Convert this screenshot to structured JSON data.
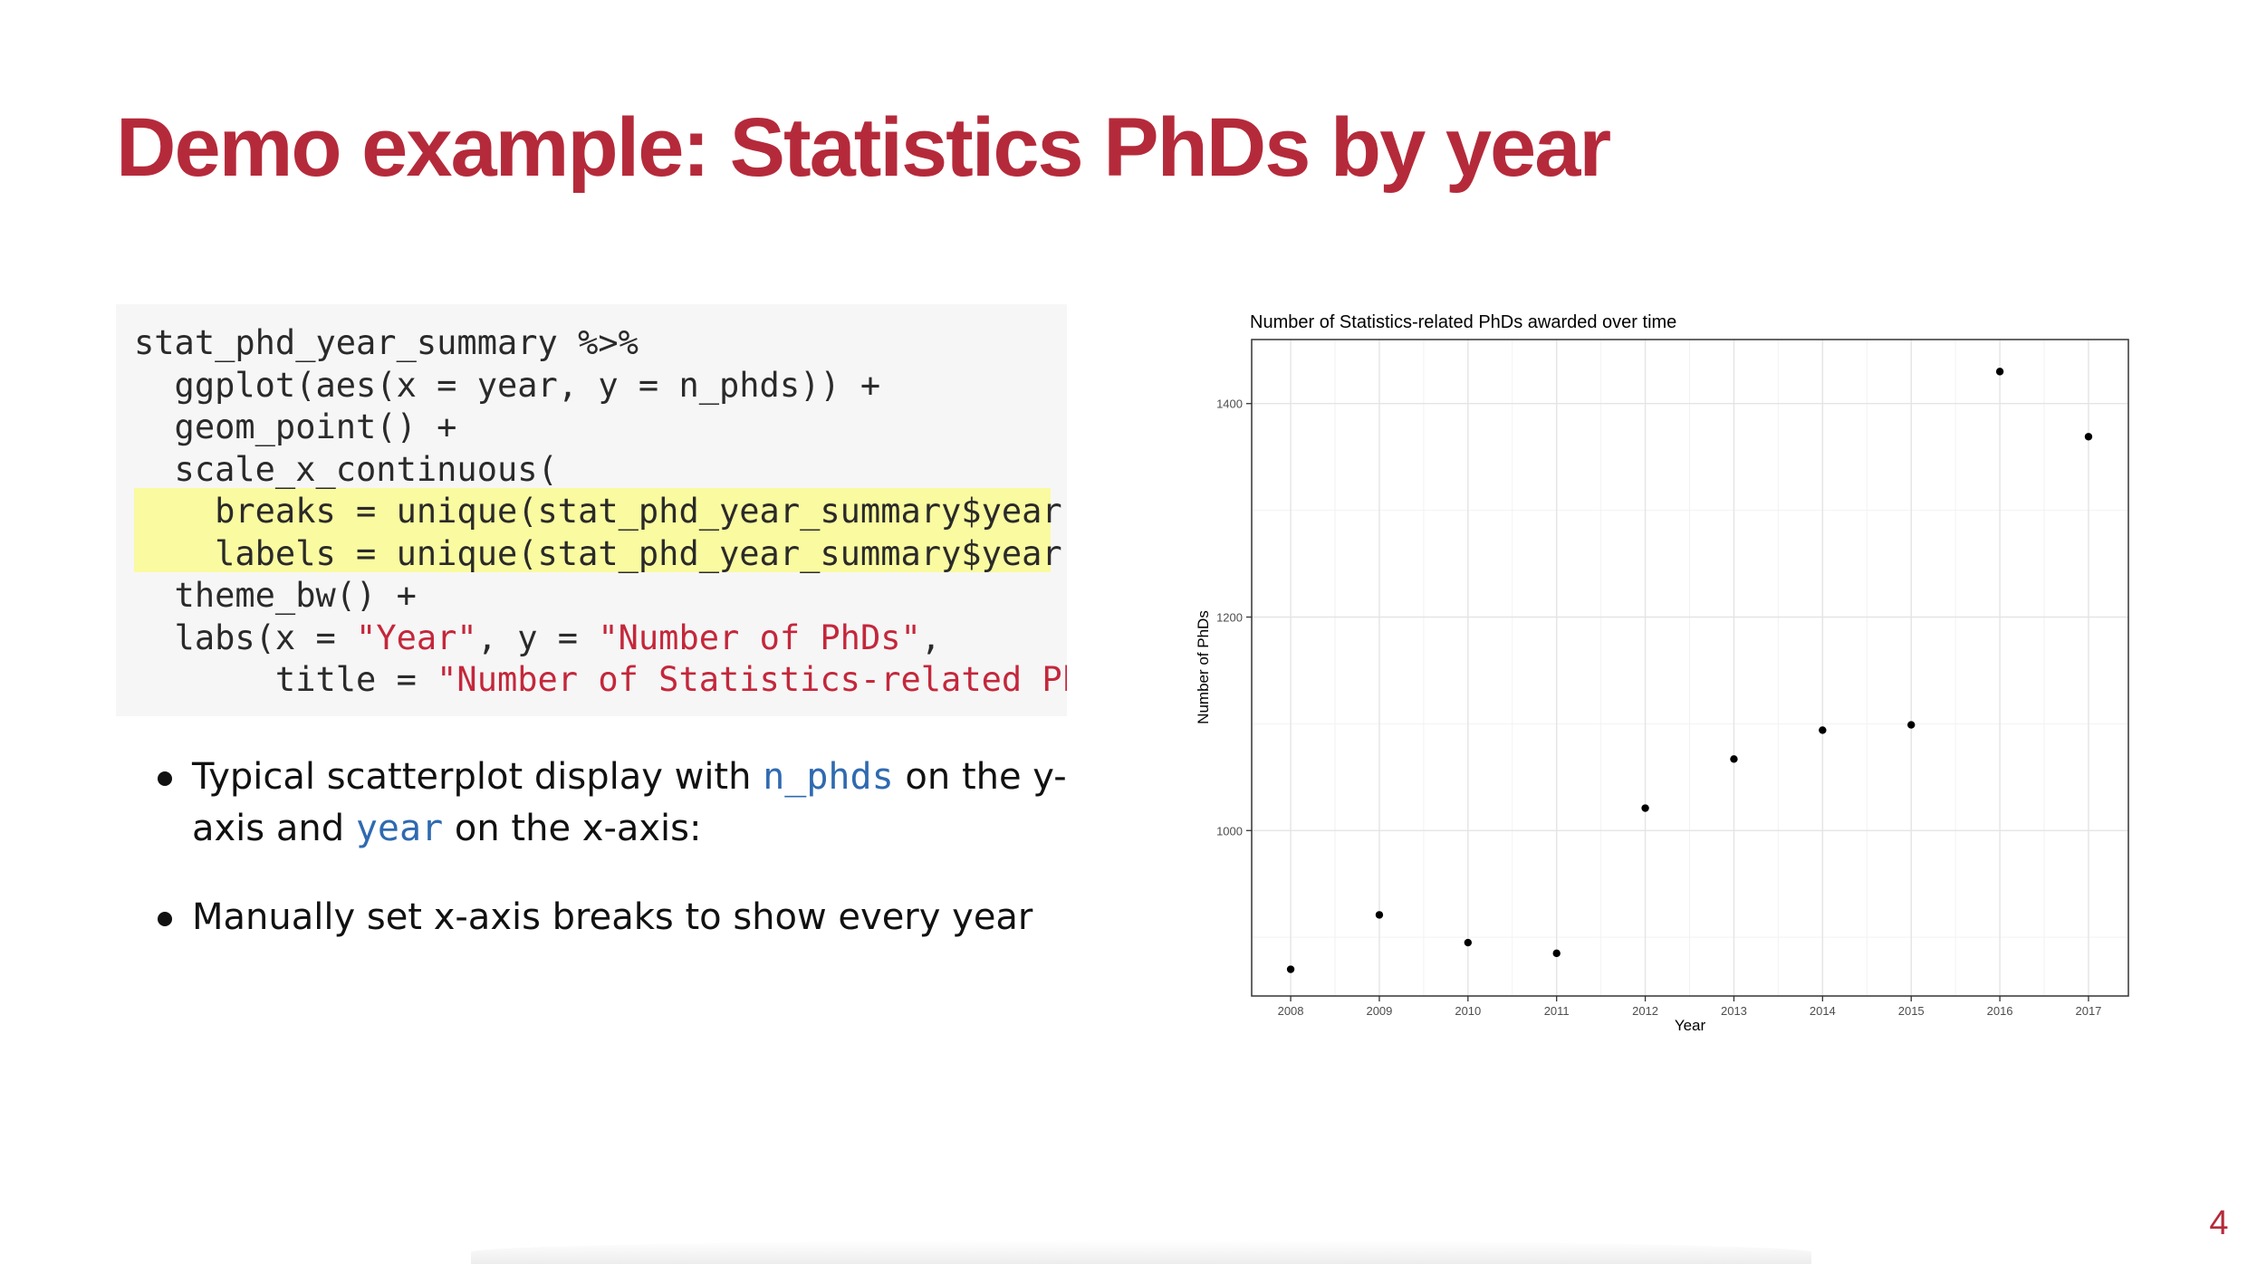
{
  "slide": {
    "title": "Demo example: Statistics PhDs by year",
    "page_number": "4"
  },
  "code": {
    "lines": [
      "stat_phd_year_summary %>%",
      "  ggplot(aes(x = year, y = n_phds)) +",
      "  geom_point() +",
      "  scale_x_continuous(",
      "    breaks = unique(stat_phd_year_summary$year),",
      "    labels = unique(stat_phd_year_summary$year)) +",
      "  theme_bw() +",
      "  labs(x = ",
      "       title = "
    ],
    "strings": {
      "year": "\"Year\"",
      "sep1": ", y = ",
      "nphds": "\"Number of PhDs\"",
      "comma": ",",
      "title": "\"Number of Statistics-related PhDs awarded over time\")"
    },
    "highlight_color": "#fafaa0"
  },
  "bullets": {
    "b1_pre": "Typical scatterplot display with ",
    "b1_code1": "n_phds",
    "b1_mid": " on the y-axis and ",
    "b1_code2": "year",
    "b1_post": " on the x-axis:",
    "b2": "Manually set x-axis breaks to show every year"
  },
  "chart_data": {
    "type": "scatter",
    "title": "Number of Statistics-related PhDs awarded over time",
    "xlabel": "Year",
    "ylabel": "Number of PhDs",
    "x": [
      2008,
      2009,
      2010,
      2011,
      2012,
      2013,
      2014,
      2015,
      2016,
      2017
    ],
    "y": [
      870,
      921,
      895,
      885,
      1021,
      1067,
      1094,
      1099,
      1430,
      1369
    ],
    "x_ticks": [
      "2008",
      "2009",
      "2010",
      "2011",
      "2012",
      "2013",
      "2014",
      "2015",
      "2016",
      "2017"
    ],
    "y_ticks": [
      "1000",
      "1200",
      "1400"
    ],
    "xlim": [
      2007.56,
      2017.45
    ],
    "ylim": [
      845,
      1460
    ],
    "grid": true,
    "theme": "bw",
    "point_color": "#000000"
  },
  "colors": {
    "accent": "#b52a3a",
    "string_red": "#c4273b",
    "inline_code_blue": "#2f6ab0",
    "code_bg": "#f6f6f6"
  }
}
